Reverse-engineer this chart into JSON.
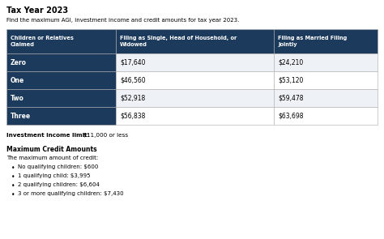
{
  "title": "Tax Year 2023",
  "subtitle": "Find the maximum AGI, investment income and credit amounts for tax year 2023.",
  "header_bg": "#1b3a5c",
  "header_text_color": "#ffffff",
  "col1_header": "Children or Relatives\nClaimed",
  "col2_header": "Filing as Single, Head of Household, or\nWidowed",
  "col3_header": "Filing as Married Filing\nJointly",
  "rows": [
    {
      "label": "Zero",
      "single": "$17,640",
      "married": "$24,210"
    },
    {
      "label": "One",
      "single": "$46,560",
      "married": "$53,120"
    },
    {
      "label": "Two",
      "single": "$52,918",
      "married": "$59,478"
    },
    {
      "label": "Three",
      "single": "$56,838",
      "married": "$63,698"
    }
  ],
  "row_bg_even": "#eef1f5",
  "row_bg_odd": "#ffffff",
  "col1_bg": "#1b3a5c",
  "col1_text": "#ffffff",
  "border_color": "#aaaaaa",
  "investment_label": "Investment income limit:",
  "investment_value": " $11,000 or less",
  "credit_title": "Maximum Credit Amounts",
  "credit_subtitle": "The maximum amount of credit:",
  "credit_items": [
    "No qualifying children: $600",
    "1 qualifying child: $3,995",
    "2 qualifying children: $6,604",
    "3 or more qualifying children: $7,430"
  ],
  "bg_color": "#ffffff",
  "text_color": "#000000"
}
